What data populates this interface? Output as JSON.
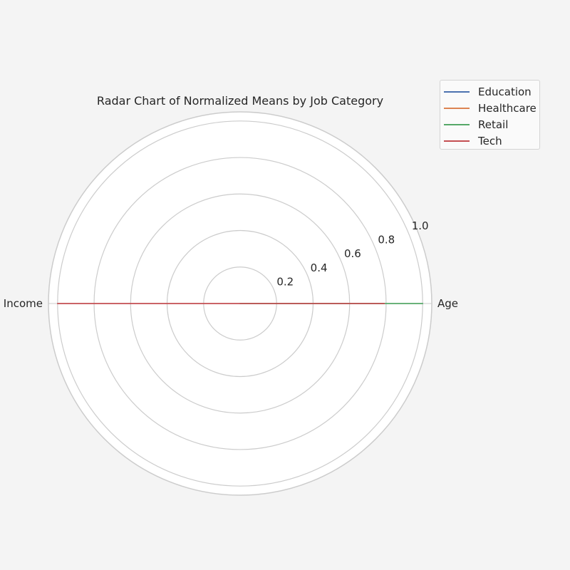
{
  "chart_data": {
    "type": "radar",
    "title": "Radar Chart of Normalized Means by Job Category",
    "axes": [
      "Age",
      "Income"
    ],
    "rlim": [
      0,
      1.05
    ],
    "rticks": [
      "0.2",
      "0.4",
      "0.6",
      "0.8",
      "1.0"
    ],
    "rtick_values": [
      0.2,
      0.4,
      0.6,
      0.8,
      1.0
    ],
    "grid": true,
    "legend_position": "top-right",
    "series": [
      {
        "name": "Education",
        "color": "#4c72b0",
        "values": [
          0.0,
          0.0
        ]
      },
      {
        "name": "Healthcare",
        "color": "#dd8452",
        "values": [
          0.0,
          0.0
        ]
      },
      {
        "name": "Retail",
        "color": "#55a868",
        "values": [
          1.0,
          0.0
        ]
      },
      {
        "name": "Tech",
        "color": "#c44e52",
        "values": [
          0.79,
          1.0
        ]
      }
    ]
  }
}
